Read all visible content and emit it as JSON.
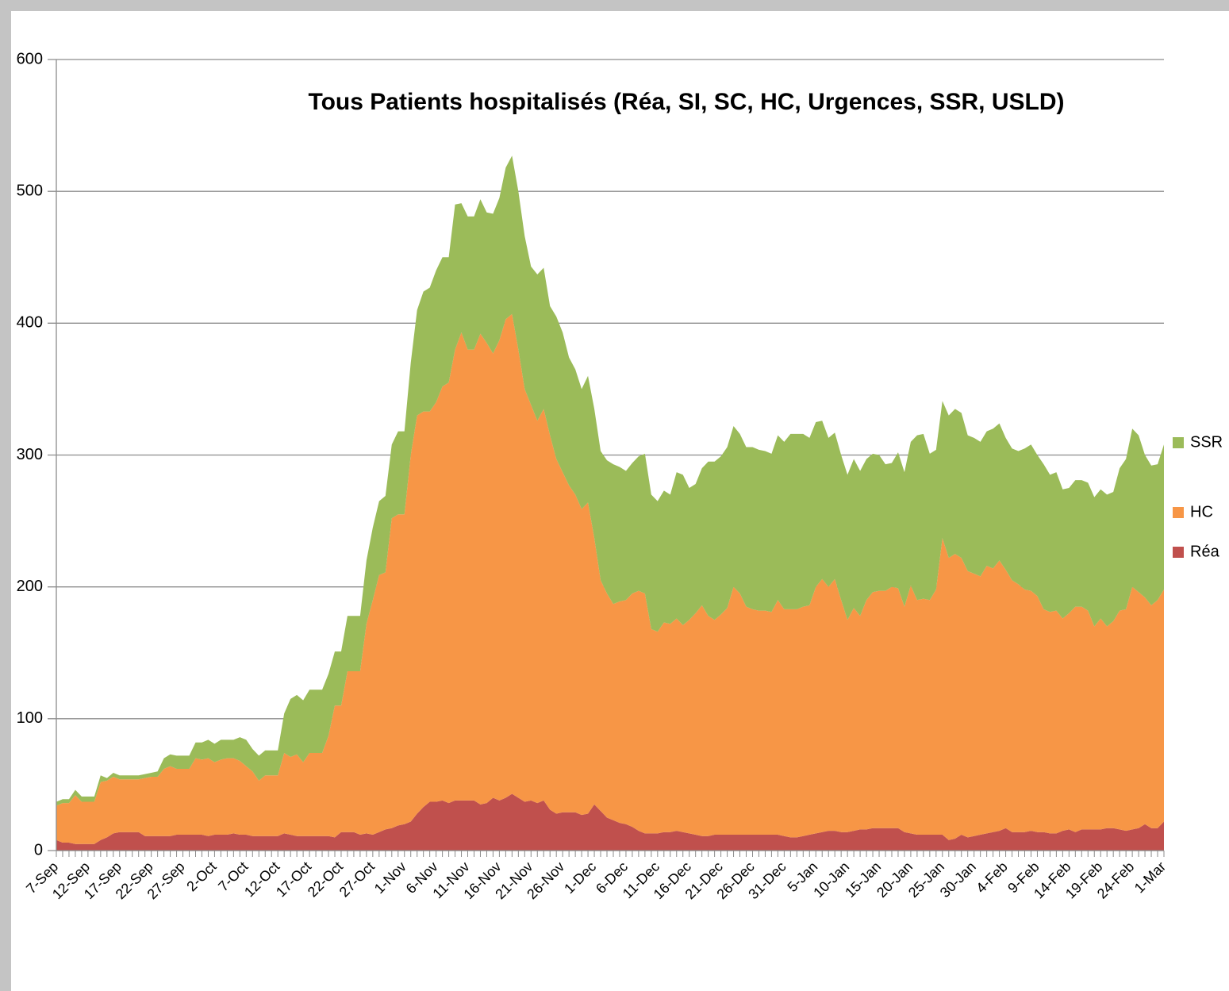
{
  "chart_data": {
    "type": "stacked-area",
    "title": "Tous Patients hospitalisés (Réa, SI, SC, HC, Urgences, SSR, USLD)",
    "categories": [
      "7-Sep",
      null,
      null,
      null,
      null,
      "12-Sep",
      null,
      null,
      null,
      null,
      "17-Sep",
      null,
      null,
      null,
      null,
      "22-Sep",
      null,
      null,
      null,
      null,
      "27-Sep",
      null,
      null,
      null,
      null,
      "2-Oct",
      null,
      null,
      null,
      null,
      "7-Oct",
      null,
      null,
      null,
      null,
      "12-Oct",
      null,
      null,
      null,
      null,
      "17-Oct",
      null,
      null,
      null,
      null,
      "22-Oct",
      null,
      null,
      null,
      null,
      "27-Oct",
      null,
      null,
      null,
      null,
      "1-Nov",
      null,
      null,
      null,
      null,
      "6-Nov",
      null,
      null,
      null,
      null,
      "11-Nov",
      null,
      null,
      null,
      null,
      "16-Nov",
      null,
      null,
      null,
      null,
      "21-Nov",
      null,
      null,
      null,
      null,
      "26-Nov",
      null,
      null,
      null,
      null,
      "1-Dec",
      null,
      null,
      null,
      null,
      "6-Dec",
      null,
      null,
      null,
      null,
      "11-Dec",
      null,
      null,
      null,
      null,
      "16-Dec",
      null,
      null,
      null,
      null,
      "21-Dec",
      null,
      null,
      null,
      null,
      "26-Dec",
      null,
      null,
      null,
      null,
      "31-Dec",
      null,
      null,
      null,
      null,
      "5-Jan",
      null,
      null,
      null,
      null,
      "10-Jan",
      null,
      null,
      null,
      null,
      "15-Jan",
      null,
      null,
      null,
      null,
      "20-Jan",
      null,
      null,
      null,
      null,
      "25-Jan",
      null,
      null,
      null,
      null,
      "30-Jan",
      null,
      null,
      null,
      null,
      "4-Feb",
      null,
      null,
      null,
      null,
      "9-Feb",
      null,
      null,
      null,
      null,
      "14-Feb",
      null,
      null,
      null,
      null,
      "19-Feb",
      null,
      null,
      null,
      null,
      "24-Feb",
      null,
      null,
      null,
      null,
      "1-Mar"
    ],
    "series": [
      {
        "name": "Réa",
        "color": "#c0504d",
        "values": [
          8,
          6,
          6,
          5,
          5,
          5,
          5,
          8,
          10,
          13,
          14,
          14,
          14,
          14,
          11,
          11,
          11,
          11,
          11,
          12,
          12,
          12,
          12,
          12,
          11,
          12,
          12,
          12,
          13,
          12,
          12,
          11,
          11,
          11,
          11,
          11,
          13,
          12,
          11,
          11,
          11,
          11,
          11,
          11,
          10,
          14,
          14,
          14,
          12,
          13,
          12,
          14,
          16,
          17,
          19,
          20,
          22,
          28,
          33,
          37,
          37,
          38,
          36,
          38,
          38,
          38,
          38,
          35,
          36,
          40,
          38,
          40,
          43,
          40,
          37,
          38,
          36,
          38,
          31,
          28,
          29,
          29,
          29,
          27,
          28,
          35,
          30,
          25,
          23,
          21,
          20,
          18,
          15,
          13,
          13,
          13,
          14,
          14,
          15,
          14,
          13,
          12,
          11,
          11,
          12,
          12,
          12,
          12,
          12,
          12,
          12,
          12,
          12,
          12,
          12,
          11,
          10,
          10,
          11,
          12,
          13,
          14,
          15,
          15,
          14,
          14,
          15,
          16,
          16,
          17,
          17,
          17,
          17,
          17,
          14,
          13,
          12,
          12,
          12,
          12,
          12,
          8,
          9,
          12,
          10,
          11,
          12,
          13,
          14,
          15,
          17,
          14,
          14,
          14,
          15,
          14,
          14,
          13,
          13,
          15,
          16,
          14,
          16,
          16,
          16,
          16,
          17,
          17,
          16,
          15,
          16,
          17,
          20,
          17,
          17,
          22
        ]
      },
      {
        "name": "HC",
        "color": "#f79646",
        "values": [
          26,
          30,
          30,
          37,
          32,
          32,
          32,
          44,
          43,
          43,
          40,
          40,
          40,
          40,
          44,
          45,
          45,
          51,
          53,
          50,
          50,
          50,
          58,
          57,
          59,
          55,
          57,
          58,
          57,
          56,
          52,
          49,
          42,
          46,
          46,
          46,
          61,
          59,
          62,
          56,
          63,
          63,
          63,
          76,
          100,
          96,
          122,
          122,
          124,
          159,
          178,
          195,
          195,
          235,
          236,
          235,
          278,
          302,
          300,
          296,
          303,
          314,
          319,
          342,
          355,
          342,
          342,
          357,
          349,
          337,
          349,
          363,
          364,
          340,
          313,
          300,
          290,
          297,
          284,
          269,
          258,
          248,
          241,
          232,
          236,
          202,
          175,
          170,
          164,
          168,
          170,
          177,
          182,
          182,
          155,
          153,
          159,
          158,
          161,
          157,
          162,
          168,
          175,
          167,
          163,
          167,
          172,
          188,
          183,
          173,
          171,
          170,
          170,
          169,
          178,
          172,
          173,
          173,
          174,
          174,
          187,
          192,
          185,
          191,
          176,
          161,
          169,
          162,
          174,
          179,
          180,
          180,
          183,
          182,
          171,
          188,
          178,
          179,
          178,
          186,
          225,
          214,
          216,
          210,
          202,
          199,
          196,
          203,
          200,
          205,
          196,
          191,
          188,
          184,
          182,
          179,
          169,
          168,
          169,
          161,
          164,
          171,
          169,
          166,
          154,
          160,
          153,
          157,
          166,
          168,
          184,
          179,
          172,
          169,
          173,
          176
        ]
      },
      {
        "name": "SSR",
        "color": "#9bbb59",
        "values": [
          3,
          3,
          3,
          4,
          4,
          4,
          4,
          5,
          2,
          3,
          3,
          3,
          3,
          3,
          3,
          3,
          4,
          8,
          9,
          10,
          10,
          10,
          12,
          13,
          14,
          14,
          15,
          14,
          14,
          18,
          20,
          17,
          19,
          19,
          19,
          19,
          30,
          44,
          45,
          47,
          48,
          48,
          48,
          47,
          41,
          41,
          42,
          42,
          42,
          48,
          55,
          56,
          58,
          56,
          63,
          63,
          70,
          80,
          91,
          94,
          100,
          98,
          95,
          110,
          98,
          101,
          101,
          102,
          99,
          106,
          108,
          115,
          120,
          120,
          116,
          105,
          111,
          107,
          98,
          108,
          106,
          97,
          95,
          91,
          96,
          98,
          98,
          101,
          106,
          102,
          98,
          99,
          102,
          106,
          102,
          99,
          100,
          98,
          111,
          114,
          100,
          98,
          104,
          117,
          120,
          120,
          122,
          122,
          121,
          121,
          123,
          122,
          121,
          120,
          125,
          127,
          133,
          133,
          131,
          127,
          125,
          120,
          113,
          111,
          110,
          110,
          113,
          110,
          107,
          105,
          103,
          96,
          94,
          103,
          102,
          109,
          125,
          125,
          111,
          106,
          104,
          108,
          110,
          110,
          103,
          103,
          102,
          102,
          106,
          104,
          100,
          100,
          101,
          107,
          111,
          107,
          110,
          104,
          105,
          98,
          95,
          96,
          96,
          97,
          98,
          98,
          100,
          98,
          108,
          114,
          120,
          119,
          108,
          106,
          103,
          110
        ]
      }
    ],
    "ylim": [
      0,
      600
    ],
    "yticks": [
      0,
      100,
      200,
      300,
      400,
      500,
      600
    ],
    "grid": true,
    "legend": "right"
  }
}
